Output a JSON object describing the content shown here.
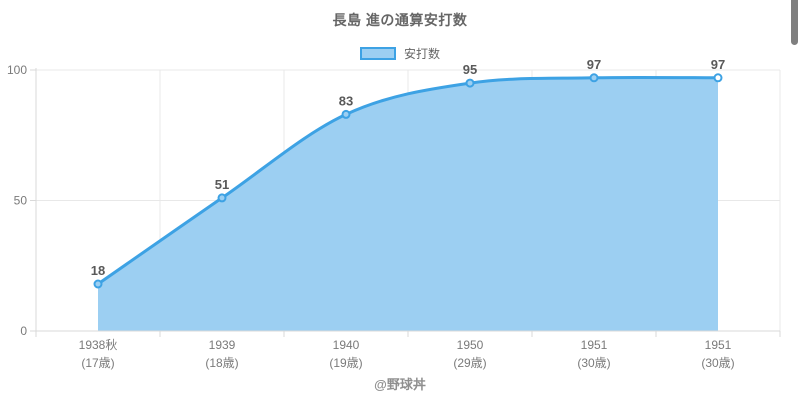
{
  "watermark": "@野球丼",
  "chart_data": {
    "type": "area",
    "title": "長島 進の通算安打数",
    "series_name": "安打数",
    "categories": [
      "1938秋",
      "1939",
      "1940",
      "1950",
      "1951",
      "1951"
    ],
    "categories_sub": [
      "(17歳)",
      "(18歳)",
      "(19歳)",
      "(29歳)",
      "(30歳)",
      "(30歳)"
    ],
    "values": [
      18,
      51,
      83,
      95,
      97,
      97
    ],
    "ylim": [
      0,
      100
    ],
    "yticks": [
      0,
      50,
      100
    ],
    "grid": true,
    "legend_position": "top",
    "line_color": "#3da2e4",
    "fill_color": "#9ccff2",
    "point_fill": "#9ccff2",
    "point_last_fill": "#ffffff",
    "value_label_color": "#595959",
    "tick_label_color": "#7a7a7a",
    "gridline_color": "#e8e8e8",
    "axis_color": "#d9d9d9"
  }
}
